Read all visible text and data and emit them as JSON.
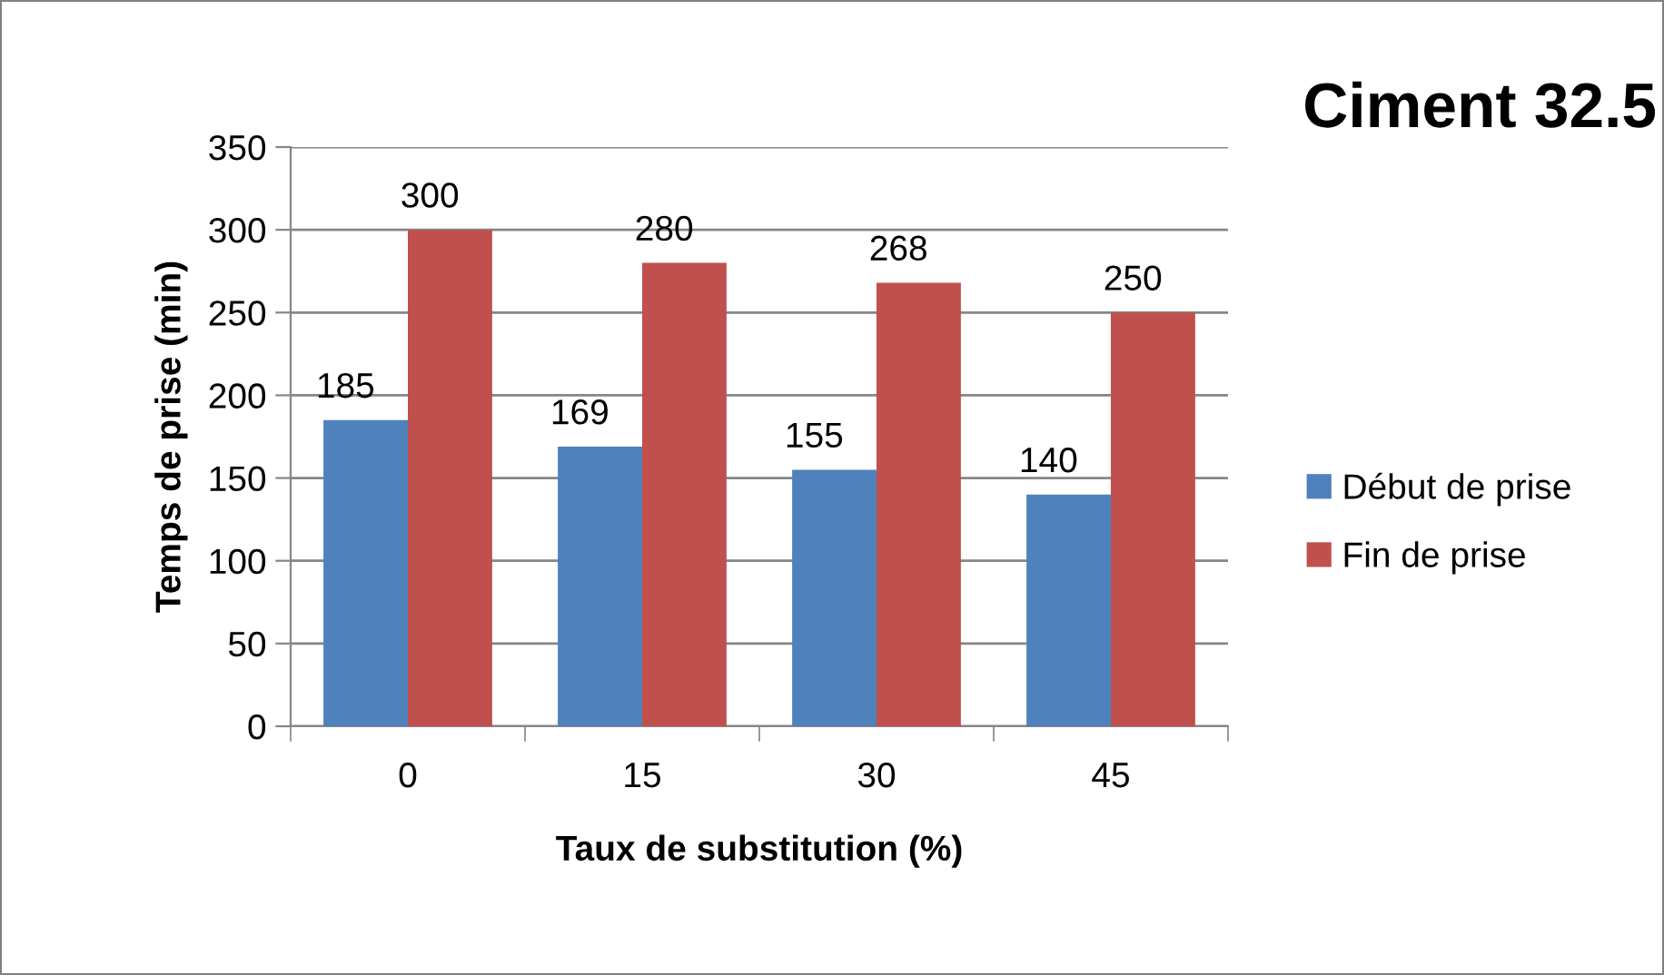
{
  "chart_data": {
    "type": "bar",
    "title": "Ciment 32.5",
    "xlabel": "Taux de substitution (%)",
    "ylabel": "Temps de prise (min)",
    "categories": [
      "0",
      "15",
      "30",
      "45"
    ],
    "series": [
      {
        "name": "Début de prise",
        "color": "#4f81bd",
        "values": [
          185,
          169,
          155,
          140
        ]
      },
      {
        "name": "Fin de prise",
        "color": "#c0504d",
        "values": [
          300,
          280,
          268,
          250
        ]
      }
    ],
    "ylim": [
      0,
      350
    ],
    "yticks": [
      0,
      50,
      100,
      150,
      200,
      250,
      300,
      350
    ],
    "grid": "y",
    "legend": "right",
    "data_labels": true
  }
}
